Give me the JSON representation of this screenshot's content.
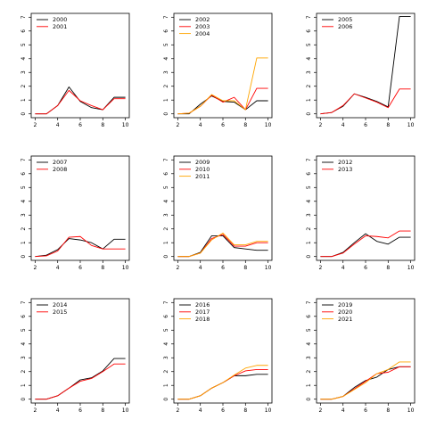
{
  "chart_data": [
    {
      "type": "line",
      "x": [
        2,
        3,
        4,
        5,
        6,
        7,
        8,
        9,
        10
      ],
      "xlim": [
        2,
        10
      ],
      "ylim": [
        0,
        7
      ],
      "xticks": [
        2,
        4,
        6,
        8,
        10
      ],
      "yticks": [
        0,
        1,
        2,
        3,
        4,
        5,
        6,
        7
      ],
      "grid": false,
      "legend": "top-left",
      "series": [
        {
          "name": "2000",
          "color": "#000000",
          "values": [
            0,
            0,
            0.6,
            1.95,
            0.9,
            0.45,
            0.3,
            1.2,
            1.2
          ]
        },
        {
          "name": "2001",
          "color": "#ff0000",
          "values": [
            0,
            0,
            0.6,
            1.7,
            0.95,
            0.6,
            0.3,
            1.1,
            1.1
          ]
        }
      ]
    },
    {
      "type": "line",
      "x": [
        2,
        3,
        4,
        5,
        6,
        7,
        8,
        9,
        10
      ],
      "xlim": [
        2,
        10
      ],
      "ylim": [
        0,
        7
      ],
      "xticks": [
        2,
        4,
        6,
        8,
        10
      ],
      "yticks": [
        0,
        1,
        2,
        3,
        4,
        5,
        6,
        7
      ],
      "grid": false,
      "legend": "top-left",
      "series": [
        {
          "name": "2002",
          "color": "#000000",
          "values": [
            0,
            0,
            0.7,
            1.3,
            0.9,
            0.85,
            0.3,
            0.95,
            0.95
          ]
        },
        {
          "name": "2003",
          "color": "#ff0000",
          "values": [
            0,
            0.05,
            0.55,
            1.35,
            0.85,
            1.2,
            0.3,
            1.85,
            1.85
          ]
        },
        {
          "name": "2004",
          "color": "#ffa500",
          "values": [
            0,
            0.05,
            0.55,
            1.4,
            0.95,
            0.95,
            0.3,
            4.05,
            4.05
          ]
        }
      ]
    },
    {
      "type": "line",
      "x": [
        2,
        3,
        4,
        5,
        6,
        7,
        8,
        9,
        10
      ],
      "xlim": [
        2,
        10
      ],
      "ylim": [
        0,
        7
      ],
      "xticks": [
        2,
        4,
        6,
        8,
        10
      ],
      "yticks": [
        0,
        1,
        2,
        3,
        4,
        5,
        6,
        7
      ],
      "grid": false,
      "legend": "top-left",
      "series": [
        {
          "name": "2005",
          "color": "#000000",
          "values": [
            0,
            0.1,
            0.55,
            1.45,
            1.2,
            0.9,
            0.5,
            7.05,
            7.05
          ]
        },
        {
          "name": "2006",
          "color": "#ff0000",
          "values": [
            0,
            0.1,
            0.6,
            1.45,
            1.15,
            0.85,
            0.45,
            1.8,
            1.8
          ]
        }
      ]
    },
    {
      "type": "line",
      "x": [
        2,
        3,
        4,
        5,
        6,
        7,
        8,
        9,
        10
      ],
      "xlim": [
        2,
        10
      ],
      "ylim": [
        0,
        7
      ],
      "xticks": [
        2,
        4,
        6,
        8,
        10
      ],
      "yticks": [
        0,
        1,
        2,
        3,
        4,
        5,
        6,
        7
      ],
      "grid": false,
      "legend": "top-left",
      "series": [
        {
          "name": "2007",
          "color": "#000000",
          "values": [
            0,
            0.1,
            0.5,
            1.3,
            1.2,
            1.0,
            0.55,
            1.25,
            1.25
          ]
        },
        {
          "name": "2008",
          "color": "#ff0000",
          "values": [
            0,
            0.05,
            0.4,
            1.4,
            1.45,
            0.8,
            0.55,
            0.55,
            0.55
          ]
        }
      ]
    },
    {
      "type": "line",
      "x": [
        2,
        3,
        4,
        5,
        6,
        7,
        8,
        9,
        10
      ],
      "xlim": [
        2,
        10
      ],
      "ylim": [
        0,
        7
      ],
      "xticks": [
        2,
        4,
        6,
        8,
        10
      ],
      "yticks": [
        0,
        1,
        2,
        3,
        4,
        5,
        6,
        7
      ],
      "grid": false,
      "legend": "top-left",
      "series": [
        {
          "name": "2009",
          "color": "#000000",
          "values": [
            0,
            0,
            0.3,
            1.5,
            1.5,
            0.65,
            0.55,
            0.45,
            0.45
          ]
        },
        {
          "name": "2010",
          "color": "#ff0000",
          "values": [
            0,
            0,
            0.25,
            1.3,
            1.6,
            0.75,
            0.75,
            1.0,
            1.0
          ]
        },
        {
          "name": "2011",
          "color": "#ffa500",
          "values": [
            0,
            0,
            0.25,
            1.2,
            1.7,
            0.85,
            0.85,
            1.1,
            1.1
          ]
        }
      ]
    },
    {
      "type": "line",
      "x": [
        2,
        3,
        4,
        5,
        6,
        7,
        8,
        9,
        10
      ],
      "xlim": [
        2,
        10
      ],
      "ylim": [
        0,
        7
      ],
      "xticks": [
        2,
        4,
        6,
        8,
        10
      ],
      "yticks": [
        0,
        1,
        2,
        3,
        4,
        5,
        6,
        7
      ],
      "grid": false,
      "legend": "top-left",
      "series": [
        {
          "name": "2012",
          "color": "#000000",
          "values": [
            0,
            0,
            0.3,
            1.0,
            1.65,
            1.1,
            0.9,
            1.4,
            1.4
          ]
        },
        {
          "name": "2013",
          "color": "#ff0000",
          "values": [
            0,
            0,
            0.25,
            0.9,
            1.5,
            1.45,
            1.35,
            1.85,
            1.85
          ]
        }
      ]
    },
    {
      "type": "line",
      "x": [
        2,
        3,
        4,
        5,
        6,
        7,
        8,
        9,
        10
      ],
      "xlim": [
        2,
        10
      ],
      "ylim": [
        0,
        7
      ],
      "xticks": [
        2,
        4,
        6,
        8,
        10
      ],
      "yticks": [
        0,
        1,
        2,
        3,
        4,
        5,
        6,
        7
      ],
      "grid": false,
      "legend": "top-left",
      "series": [
        {
          "name": "2014",
          "color": "#000000",
          "values": [
            0,
            0,
            0.25,
            0.8,
            1.4,
            1.55,
            2.05,
            2.95,
            2.95
          ]
        },
        {
          "name": "2015",
          "color": "#ff0000",
          "values": [
            0,
            0,
            0.25,
            0.8,
            1.3,
            1.5,
            2.0,
            2.55,
            2.55
          ]
        }
      ]
    },
    {
      "type": "line",
      "x": [
        2,
        3,
        4,
        5,
        6,
        7,
        8,
        9,
        10
      ],
      "xlim": [
        2,
        10
      ],
      "ylim": [
        0,
        7
      ],
      "xticks": [
        2,
        4,
        6,
        8,
        10
      ],
      "yticks": [
        0,
        1,
        2,
        3,
        4,
        5,
        6,
        7
      ],
      "grid": false,
      "legend": "top-left",
      "series": [
        {
          "name": "2016",
          "color": "#000000",
          "values": [
            0,
            0,
            0.25,
            0.8,
            1.2,
            1.7,
            1.7,
            1.8,
            1.8
          ]
        },
        {
          "name": "2017",
          "color": "#ff0000",
          "values": [
            0,
            0,
            0.25,
            0.8,
            1.2,
            1.7,
            2.05,
            2.15,
            2.15
          ]
        },
        {
          "name": "2018",
          "color": "#ffa500",
          "values": [
            0,
            0,
            0.25,
            0.8,
            1.2,
            1.75,
            2.25,
            2.45,
            2.45
          ]
        }
      ]
    },
    {
      "type": "line",
      "x": [
        2,
        3,
        4,
        5,
        6,
        7,
        8,
        9,
        10
      ],
      "xlim": [
        2,
        10
      ],
      "ylim": [
        0,
        7
      ],
      "xticks": [
        2,
        4,
        6,
        8,
        10
      ],
      "yticks": [
        0,
        1,
        2,
        3,
        4,
        5,
        6,
        7
      ],
      "grid": false,
      "legend": "top-left",
      "series": [
        {
          "name": "2019",
          "color": "#000000",
          "values": [
            0,
            0,
            0.2,
            0.85,
            1.35,
            1.6,
            2.15,
            2.35,
            2.35
          ]
        },
        {
          "name": "2020",
          "color": "#ff0000",
          "values": [
            0,
            0,
            0.2,
            0.75,
            1.3,
            1.85,
            1.95,
            2.35,
            2.35
          ]
        },
        {
          "name": "2021",
          "color": "#ffa500",
          "values": [
            0,
            0,
            0.2,
            0.7,
            1.2,
            1.85,
            2.15,
            2.7,
            2.7
          ]
        }
      ]
    }
  ]
}
